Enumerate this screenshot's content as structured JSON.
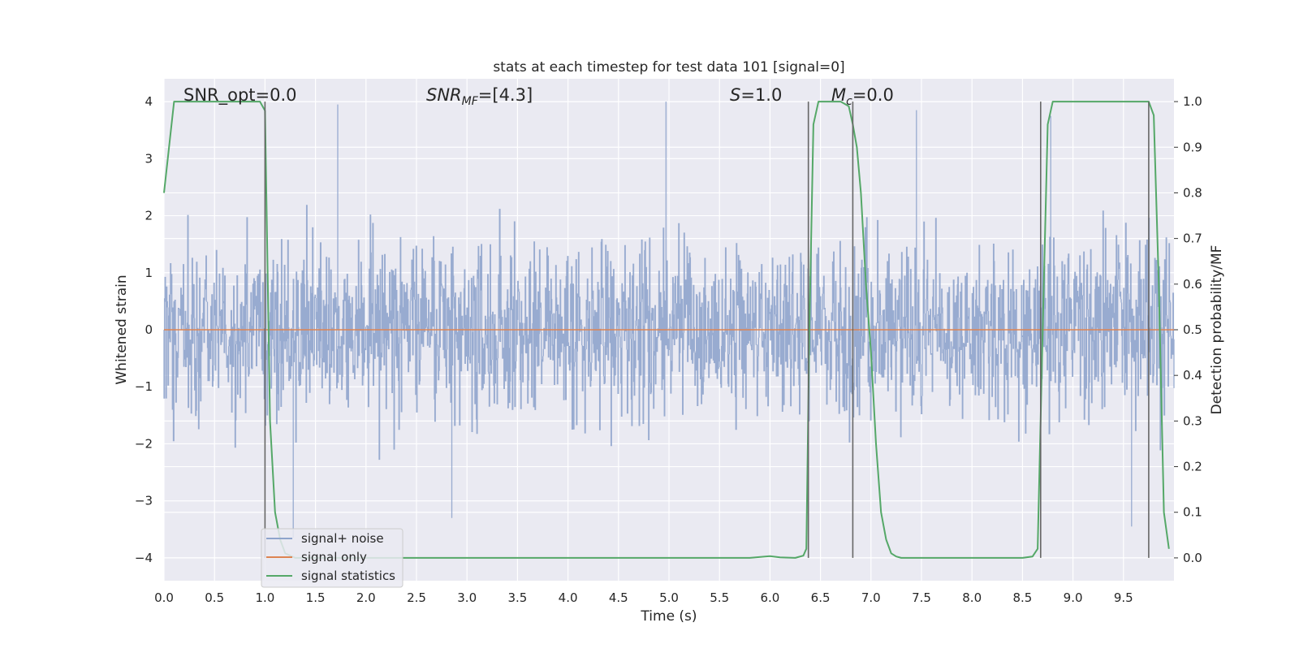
{
  "chart_data": {
    "type": "line",
    "title": "stats at each timestep for test data 101 [signal=0]",
    "xlabel": "Time (s)",
    "ylabel_left": "Whitened strain",
    "ylabel_right": "Detection probability/MF",
    "xlim": [
      0.0,
      10.0
    ],
    "ylim_left": [
      -4.4,
      4.4
    ],
    "ylim_right": [
      -0.05,
      1.05
    ],
    "grid": true,
    "legend_position": "lower-left",
    "x_ticks": [
      "0.0",
      "0.5",
      "1.0",
      "1.5",
      "2.0",
      "2.5",
      "3.0",
      "3.5",
      "4.0",
      "4.5",
      "5.0",
      "5.5",
      "6.0",
      "6.5",
      "7.0",
      "7.5",
      "8.0",
      "8.5",
      "9.0",
      "9.5"
    ],
    "y_left_ticks": [
      "−4",
      "−3",
      "−2",
      "−1",
      "0",
      "1",
      "2",
      "3",
      "4"
    ],
    "y_right_ticks": [
      "0.0",
      "0.1",
      "0.2",
      "0.3",
      "0.4",
      "0.5",
      "0.6",
      "0.7",
      "0.8",
      "0.9",
      "1.0"
    ],
    "annotations": {
      "snr_opt": "SNR_opt=0.0",
      "snr_mf_base": "SNR",
      "snr_mf_sub": "MF",
      "snr_mf_rest": "=[4.3]",
      "s_label": "S",
      "s_rest": "=1.0",
      "mc_base": "M",
      "mc_sub": "c",
      "mc_rest": "=0.0"
    },
    "series": [
      {
        "name": "signal+ noise",
        "axis": "left",
        "color": "#8fa4cc",
        "style": "dense-noise",
        "approx_range": [
          -3.7,
          4.0
        ],
        "peaks": [
          [
            1.72,
            3.95
          ],
          [
            4.97,
            4.0
          ],
          [
            7.45,
            3.85
          ],
          [
            8.78,
            3.75
          ],
          [
            1.28,
            -3.65
          ],
          [
            9.58,
            -3.45
          ],
          [
            2.85,
            -3.3
          ]
        ]
      },
      {
        "name": "signal only",
        "axis": "left",
        "color": "#dd8452",
        "x": [
          0.0,
          10.0
        ],
        "y": [
          0.0,
          0.0
        ]
      },
      {
        "name": "signal statistics",
        "axis": "right",
        "color": "#55a868",
        "x": [
          0.0,
          0.05,
          0.1,
          0.2,
          0.3,
          0.5,
          0.7,
          0.9,
          0.95,
          1.0,
          1.05,
          1.1,
          1.15,
          1.2,
          1.3,
          1.5,
          2.0,
          3.0,
          4.0,
          5.0,
          5.5,
          5.8,
          5.95,
          6.0,
          6.1,
          6.25,
          6.33,
          6.36,
          6.39,
          6.43,
          6.48,
          6.55,
          6.7,
          6.78,
          6.82,
          6.86,
          6.9,
          6.95,
          7.0,
          7.05,
          7.1,
          7.15,
          7.2,
          7.25,
          7.3,
          7.5,
          8.0,
          8.5,
          8.6,
          8.65,
          8.7,
          8.75,
          8.8,
          8.85,
          9.0,
          9.5,
          9.7,
          9.75,
          9.8,
          9.85,
          9.9,
          9.95
        ],
        "y": [
          0.8,
          0.9,
          1.0,
          1.0,
          1.0,
          1.0,
          1.0,
          1.0,
          1.0,
          0.98,
          0.3,
          0.1,
          0.04,
          0.01,
          0.0,
          0.0,
          0.0,
          0.0,
          0.0,
          0.0,
          0.0,
          0.0,
          0.003,
          0.004,
          0.001,
          0.0,
          0.005,
          0.02,
          0.5,
          0.95,
          1.0,
          1.0,
          1.0,
          0.99,
          0.95,
          0.9,
          0.8,
          0.6,
          0.45,
          0.25,
          0.1,
          0.04,
          0.01,
          0.003,
          0.0,
          0.0,
          0.0,
          0.0,
          0.003,
          0.02,
          0.5,
          0.95,
          1.0,
          1.0,
          1.0,
          1.0,
          1.0,
          1.0,
          0.97,
          0.6,
          0.1,
          0.02
        ]
      }
    ],
    "vertical_markers": [
      1.0,
      6.38,
      6.82,
      8.68,
      9.75
    ],
    "marker_color": "#666666"
  }
}
